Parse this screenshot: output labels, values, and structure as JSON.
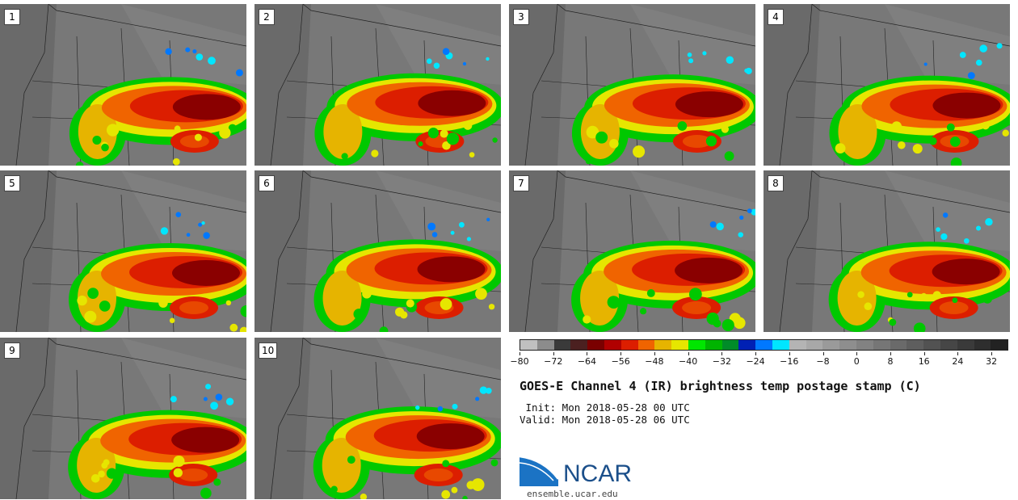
{
  "panels": [
    {
      "label": "1"
    },
    {
      "label": "2"
    },
    {
      "label": "3"
    },
    {
      "label": "4"
    },
    {
      "label": "5"
    },
    {
      "label": "6"
    },
    {
      "label": "7"
    },
    {
      "label": "8"
    },
    {
      "label": "9"
    },
    {
      "label": "10"
    }
  ],
  "colorbar": {
    "colors": [
      "#c0c0c0",
      "#8c8c8c",
      "#3a3a3a",
      "#4b2020",
      "#7a0000",
      "#b00000",
      "#dc1e00",
      "#f06400",
      "#e6b400",
      "#e6e600",
      "#00e600",
      "#00b400",
      "#008c28",
      "#0020b4",
      "#0078ff",
      "#00e6ff",
      "#b4b4b4",
      "#a8a8a8",
      "#9a9a9a",
      "#8e8e8e",
      "#828282",
      "#767676",
      "#6a6a6a",
      "#5e5e5e",
      "#525252",
      "#464646",
      "#3a3a3a",
      "#2e2e2e",
      "#222222"
    ],
    "ticks": [
      "-80",
      "-72",
      "-64",
      "-56",
      "-48",
      "-40",
      "-32",
      "-24",
      "-16",
      "-8",
      "0",
      "8",
      "16",
      "24",
      "32"
    ],
    "tick_values": [
      -80,
      -72,
      -64,
      -56,
      -48,
      -40,
      -32,
      -24,
      -16,
      -8,
      0,
      8,
      16,
      24,
      32
    ],
    "min": -80,
    "max": 36
  },
  "title": "GOES-E Channel 4 (IR) brightness temp postage stamp (C)",
  "init": "Init: Mon 2018-05-28 00 UTC",
  "valid": "Valid: Mon 2018-05-28 06 UTC",
  "logo": {
    "text": "NCAR",
    "url_text": "ensemble.ucar.edu",
    "color": "#1b4f8a"
  }
}
